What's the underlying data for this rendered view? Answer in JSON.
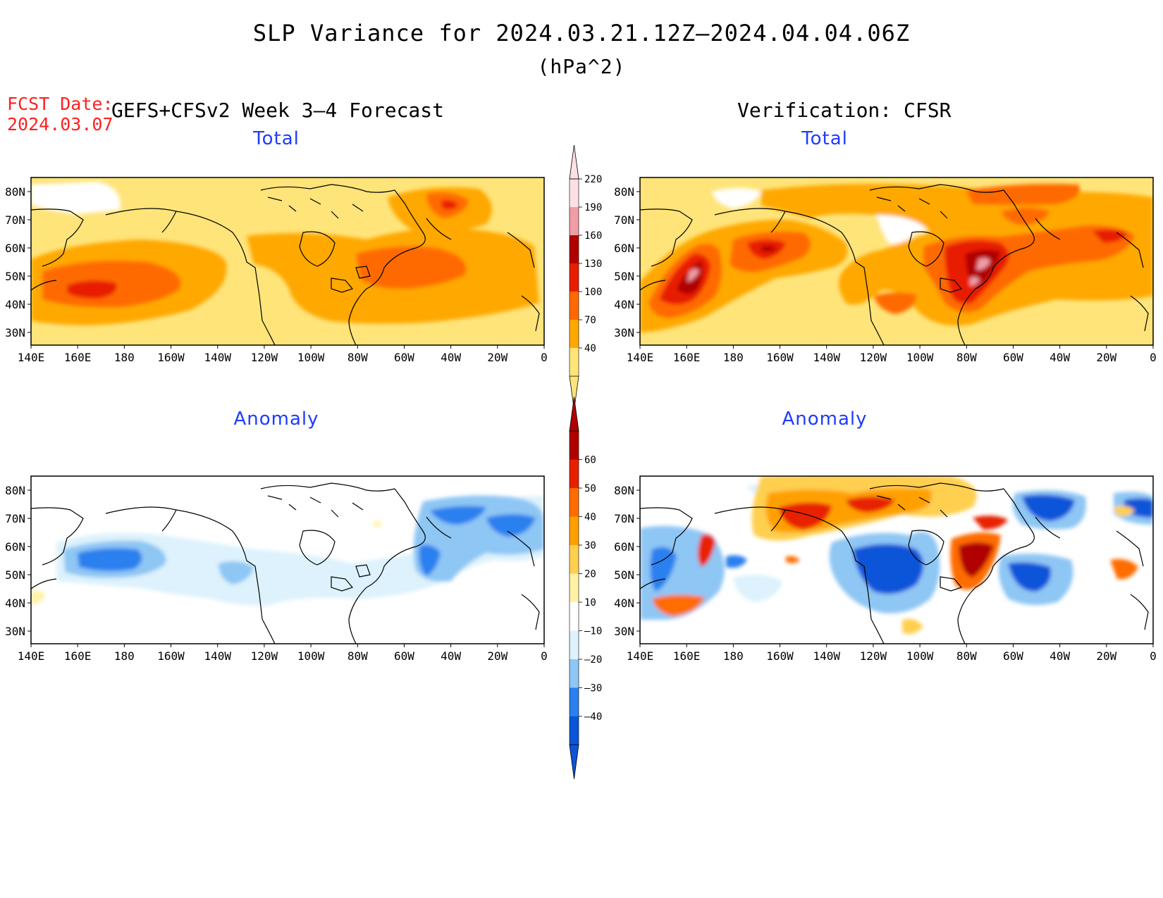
{
  "title": "SLP Variance for 2024.03.21.12Z–2024.04.04.06Z",
  "units": "(hPa^2)",
  "fcst_date_label": "FCST Date:",
  "fcst_date_value": "2024.03.07",
  "left_column_title": "GEFS+CFSv2 Week 3–4 Forecast",
  "right_column_title": "Verification: CFSR",
  "panels": {
    "top_left": "Total",
    "top_right": "Total",
    "bottom_left": "Anomaly",
    "bottom_right": "Anomaly"
  },
  "lat_labels": [
    "80N",
    "70N",
    "60N",
    "50N",
    "40N",
    "30N"
  ],
  "lon_labels": [
    "140E",
    "160E",
    "180",
    "160W",
    "140W",
    "120W",
    "100W",
    "80W",
    "60W",
    "40W",
    "20W",
    "0"
  ],
  "total_colorbar": {
    "labels": [
      "40",
      "70",
      "100",
      "130",
      "160",
      "190",
      "220"
    ],
    "colors": [
      "#ffe47a",
      "#ffa800",
      "#ff6a00",
      "#e81e00",
      "#b00000",
      "#f09da6",
      "#fde0e4"
    ]
  },
  "anomaly_colorbar": {
    "labels": [
      "–40",
      "–30",
      "–20",
      "–10",
      "10",
      "20",
      "30",
      "40",
      "50",
      "60"
    ],
    "colors": [
      "#0a55d8",
      "#2a80ee",
      "#8ec6f4",
      "#ddf2fc",
      "#ffffff",
      "#fff2a6",
      "#ffcf50",
      "#ffa000",
      "#ff6c00",
      "#e82000",
      "#b00000"
    ]
  }
}
